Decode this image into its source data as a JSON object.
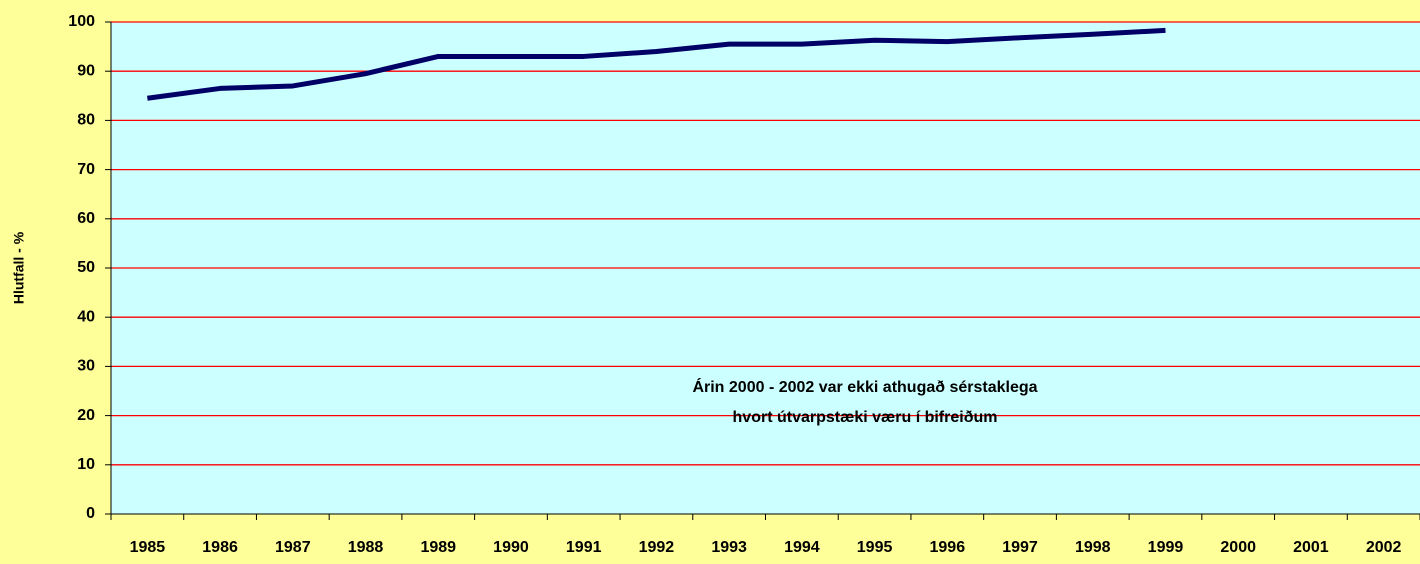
{
  "chart_data": {
    "type": "line",
    "y_label": "Hlutfall - %",
    "annotation": [
      "Árin 2000 - 2002 var ekki athugað sérstaklega",
      "hvort útvarpstæki væru í bifreiðum"
    ],
    "categories": [
      "1985",
      "1986",
      "1987",
      "1988",
      "1989",
      "1990",
      "1991",
      "1992",
      "1993",
      "1994",
      "1995",
      "1996",
      "1997",
      "1998",
      "1999",
      "2000",
      "2001",
      "2002"
    ],
    "series": [
      {
        "color": "#000066",
        "values": [
          84.5,
          86.5,
          87,
          89.5,
          93,
          93,
          93,
          94,
          95.5,
          95.5,
          96.3,
          96,
          96.8,
          97.5,
          98.3,
          null,
          null,
          null
        ]
      }
    ],
    "ylim": [
      0,
      100
    ],
    "yticks": [
      0,
      10,
      20,
      30,
      40,
      50,
      60,
      70,
      80,
      90,
      100
    ],
    "grid": true,
    "grid_color": "#ff0000",
    "plot_background": "#ccffff"
  }
}
